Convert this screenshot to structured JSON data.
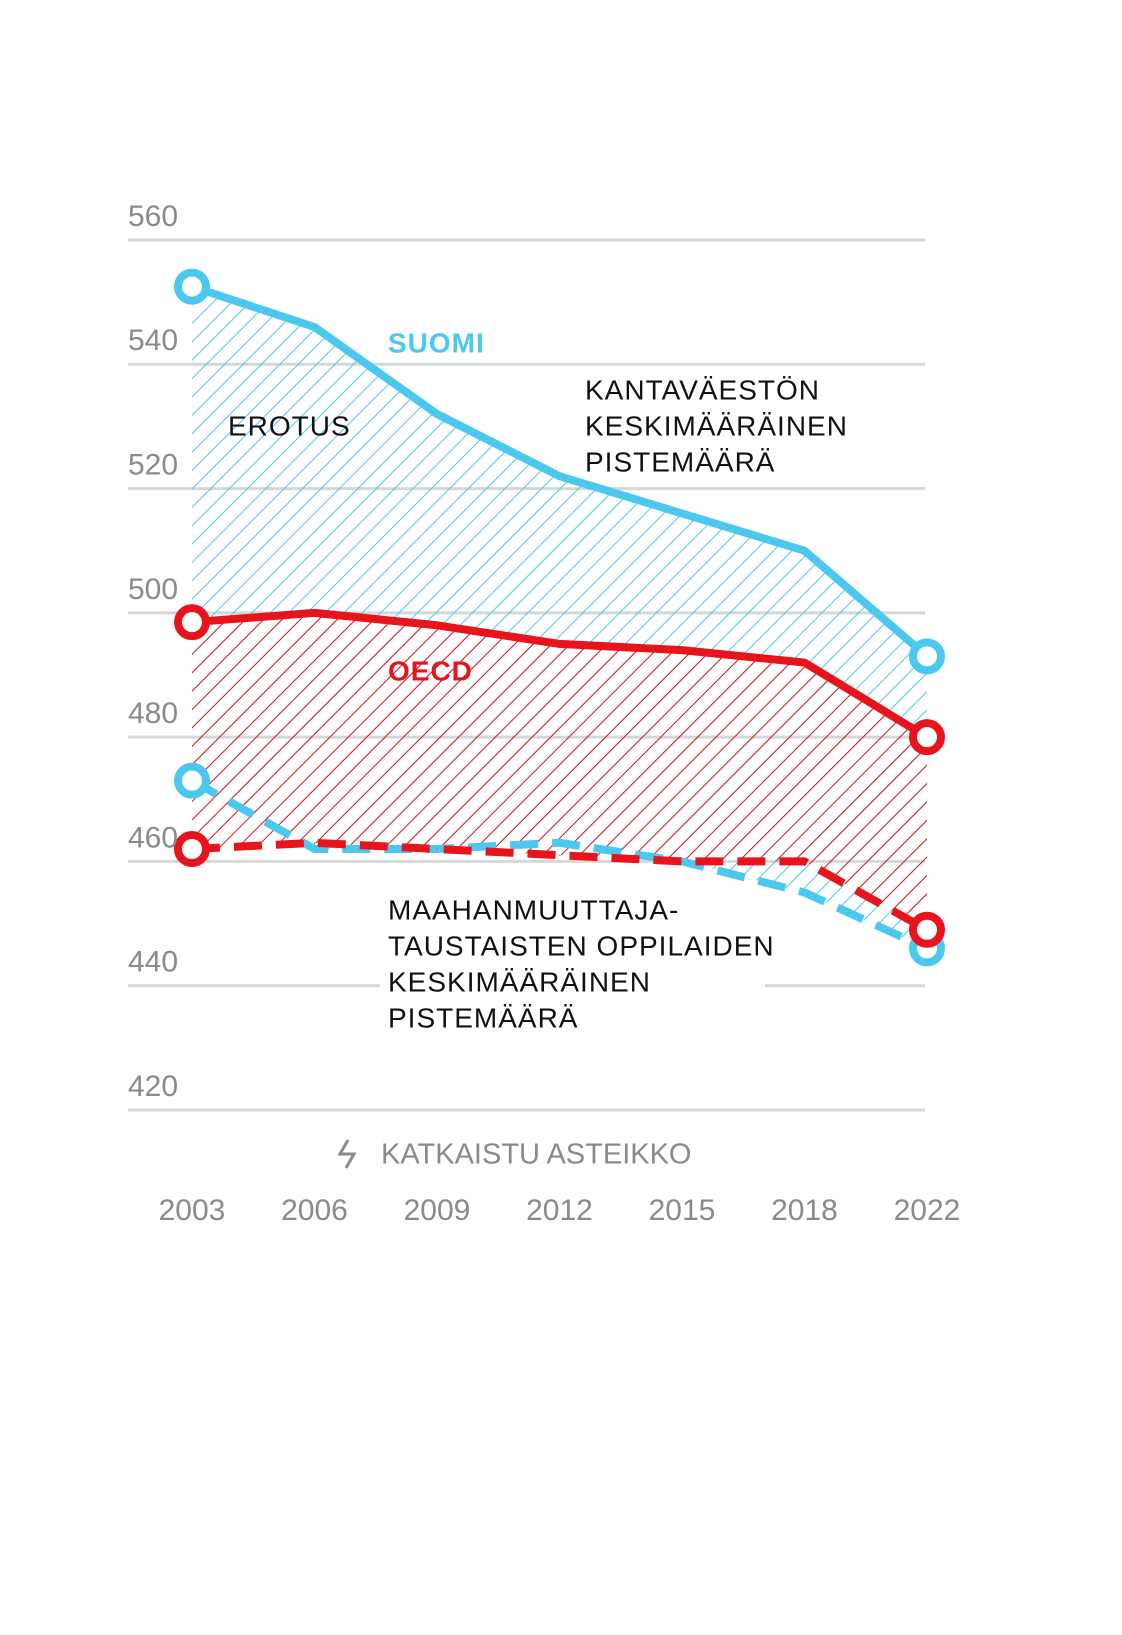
{
  "chart_data": {
    "type": "line",
    "categories": [
      "2003",
      "2006",
      "2009",
      "2012",
      "2015",
      "2018",
      "2022"
    ],
    "series": [
      {
        "color": "#4cc8ef",
        "dash": "solid",
        "values": [
          552.5,
          546,
          532,
          522,
          516,
          510,
          493
        ]
      },
      {
        "color": "#4cc8ef",
        "dash": "dashed",
        "values": [
          473,
          462,
          462,
          463,
          460,
          455,
          446
        ]
      },
      {
        "color": "#e8141b",
        "dash": "solid",
        "values": [
          498.5,
          500,
          498,
          495,
          494,
          492,
          480
        ]
      },
      {
        "color": "#e8141b",
        "dash": "dashed",
        "values": [
          462,
          463,
          462,
          461,
          460,
          460,
          449
        ]
      }
    ],
    "ylim": [
      420,
      560
    ],
    "yticks": [
      420,
      440,
      460,
      480,
      500,
      520,
      540,
      560
    ],
    "grid": true,
    "annotations": {
      "suomi": "SUOMI",
      "oecd": "OECD",
      "difference": "EROTUS",
      "native": [
        "KANTAVÄESTÖN",
        "KESKIMÄÄRÄINEN",
        "PISTEMÄÄRÄ"
      ],
      "immigrant": [
        "MAAHANMUUTTAJA-",
        "TAUSTAISTEN OPPILAIDEN",
        "KESKIMÄÄRÄINEN",
        "PISTEMÄÄRÄ"
      ],
      "axis_break": "KATKAISTU ASTEIKKO"
    }
  }
}
